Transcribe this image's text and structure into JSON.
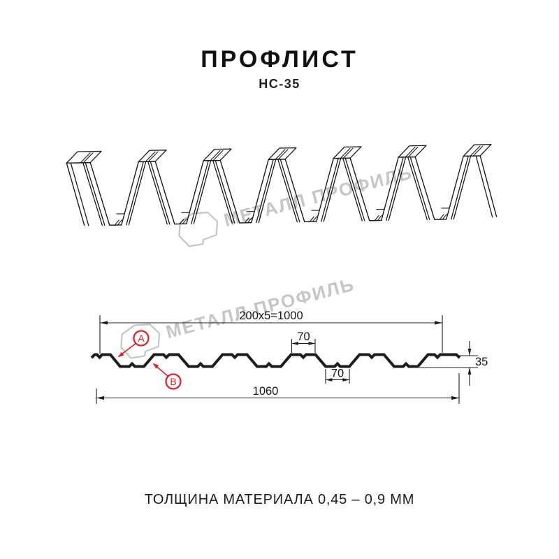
{
  "header": {
    "title": "ПРОФЛИСТ",
    "subtitle": "НС-35"
  },
  "watermark": {
    "text": "МЕТАЛЛ ПРОФИЛЬ",
    "color": "#c6c6c6"
  },
  "drawing": {
    "profile_name": "НС-35",
    "dimensions": {
      "pitch": "200x5=1000",
      "crest_width": "70",
      "valley_width": "70",
      "height": "35",
      "overall_width": "1060"
    },
    "callouts": [
      {
        "label": "A"
      },
      {
        "label": "B"
      }
    ],
    "colors": {
      "line": "#1c1c1c",
      "accent": "#e31e24",
      "watermark": "#c6c6c6"
    }
  },
  "footer": {
    "text": "ТОЛЩИНА МАТЕРИАЛА 0,45 – 0,9 ММ"
  }
}
